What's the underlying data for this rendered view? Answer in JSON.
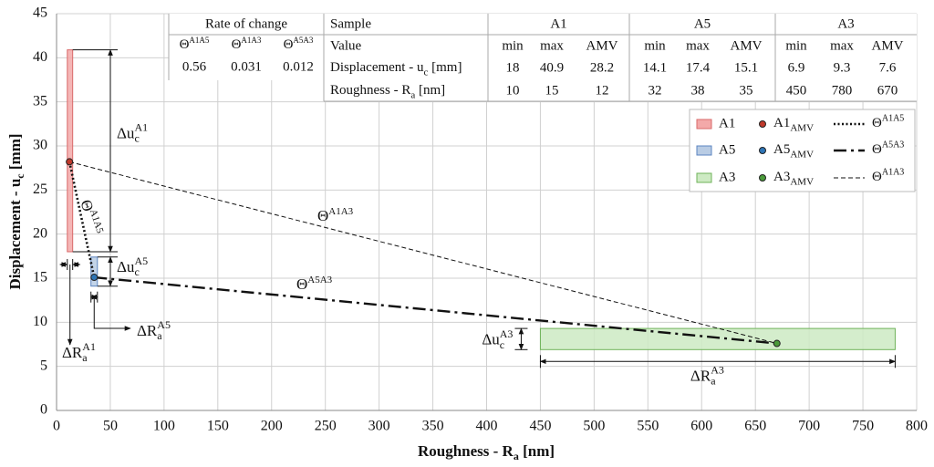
{
  "chart_data": {
    "type": "range-scatter",
    "x_label": [
      "Roughness - R",
      "a",
      " [nm]"
    ],
    "y_label": [
      "Displacement - u",
      "c",
      " [mm]"
    ],
    "xlim": [
      0,
      800
    ],
    "xticks": [
      0,
      50,
      100,
      150,
      200,
      250,
      300,
      350,
      400,
      450,
      500,
      550,
      600,
      650,
      700,
      750,
      800
    ],
    "ylim": [
      0,
      45
    ],
    "yticks": [
      0,
      5,
      10,
      15,
      20,
      25,
      30,
      35,
      40,
      45
    ],
    "grid": true,
    "legend": "upper right",
    "ranges": [
      {
        "name": "A1",
        "color": "#f3a9a9",
        "edge": "#d96a6a",
        "x": [
          10,
          15
        ],
        "y": [
          18,
          40.9
        ],
        "du_label": [
          "Δu",
          "A1",
          "c"
        ],
        "dr_label": [
          "ΔR",
          "A1",
          "a"
        ]
      },
      {
        "name": "A5",
        "color": "#b9cce4",
        "edge": "#5b84c0",
        "x": [
          32,
          38
        ],
        "y": [
          14.1,
          17.4
        ],
        "du_label": [
          "Δu",
          "A5",
          "c"
        ],
        "dr_label": [
          "ΔR",
          "A5",
          "a"
        ]
      },
      {
        "name": "A3",
        "color": "#cdeac3",
        "edge": "#6fb35a",
        "x": [
          450,
          780
        ],
        "y": [
          6.9,
          9.3
        ],
        "du_label": [
          "Δu",
          "A3",
          "c"
        ],
        "dr_label": [
          "ΔR",
          "A3",
          "a"
        ]
      }
    ],
    "points": [
      {
        "name": "A1",
        "name_sub": "AMV",
        "color": "#c0392b",
        "x": 12,
        "y": 28.2
      },
      {
        "name": "A5",
        "name_sub": "AMV",
        "color": "#2e75b6",
        "x": 35,
        "y": 15.1
      },
      {
        "name": "A3",
        "name_sub": "AMV",
        "color": "#4a9a3a",
        "x": 670,
        "y": 7.6
      }
    ],
    "lines": [
      {
        "name": "Θ",
        "name_sup": "A1A5",
        "style": "dotted",
        "x": [
          12,
          35
        ],
        "y": [
          28.2,
          15.1
        ]
      },
      {
        "name": "Θ",
        "name_sup": "A5A3",
        "style": "dashdot",
        "x": [
          35,
          670
        ],
        "y": [
          15.1,
          7.6
        ]
      },
      {
        "name": "Θ",
        "name_sup": "A1A3",
        "style": "dashed",
        "x": [
          12,
          670
        ],
        "y": [
          28.2,
          7.6
        ]
      }
    ]
  },
  "rate_table": {
    "title": "Rate of change",
    "headers": [
      {
        "base": "Θ",
        "sup": "A1A5"
      },
      {
        "base": "Θ",
        "sup": "A1A3"
      },
      {
        "base": "Θ",
        "sup": "A5A3"
      }
    ],
    "values": [
      0.56,
      0.031,
      0.012
    ]
  },
  "sample_table": {
    "header": "Sample",
    "samples": [
      "A1",
      "A5",
      "A3"
    ],
    "value_label": "Value",
    "stats": [
      "min",
      "max",
      "AMV"
    ],
    "rows": [
      {
        "label": [
          "Displacement - u",
          "c",
          " [mm]"
        ],
        "values": [
          18,
          40.9,
          28.2,
          14.1,
          17.4,
          15.1,
          6.9,
          9.3,
          7.6
        ]
      },
      {
        "label": [
          "Roughness - R",
          "a",
          "    [nm]"
        ],
        "values": [
          10,
          15,
          12,
          32,
          38,
          35,
          450,
          780,
          670
        ]
      }
    ]
  }
}
